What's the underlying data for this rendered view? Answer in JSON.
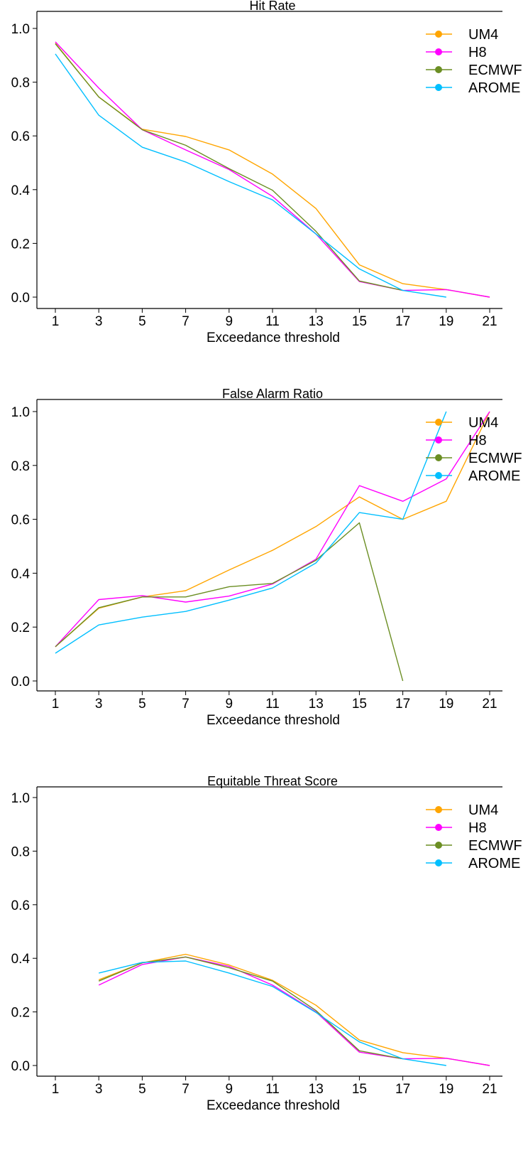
{
  "chart_data": [
    {
      "type": "line",
      "title": "Hit Rate",
      "xlabel": "Exceedance threshold",
      "ylabel": "",
      "x_ticks": [
        1,
        3,
        5,
        7,
        9,
        11,
        13,
        15,
        17,
        19,
        21
      ],
      "y_ticks": [
        "0.0",
        "0.2",
        "0.4",
        "0.6",
        "0.8",
        "1.0"
      ],
      "xlim": [
        0,
        21.5
      ],
      "ylim": [
        -0.05,
        1.05
      ],
      "grid": false,
      "legend_position": "top-right",
      "series": [
        {
          "name": "UM4",
          "color": "#ffa500",
          "x": [
            1,
            3,
            5,
            7,
            9,
            11,
            13,
            15,
            17,
            19,
            21
          ],
          "y": [
            0.945,
            0.745,
            0.625,
            0.598,
            0.548,
            0.458,
            0.33,
            0.12,
            0.05,
            0.028,
            0.0
          ]
        },
        {
          "name": "H8",
          "color": "#ff00ff",
          "x": [
            1,
            3,
            5,
            7,
            9,
            11,
            13,
            15,
            17,
            19,
            21
          ],
          "y": [
            0.95,
            0.778,
            0.623,
            0.548,
            0.475,
            0.375,
            0.235,
            0.058,
            0.025,
            0.028,
            0.0
          ]
        },
        {
          "name": "ECMWF",
          "color": "#6b8e23",
          "x": [
            1,
            3,
            5,
            7,
            9,
            11,
            13,
            15,
            17
          ],
          "y": [
            0.943,
            0.745,
            0.623,
            0.565,
            0.478,
            0.398,
            0.245,
            0.06,
            0.025
          ]
        },
        {
          "name": "AROME",
          "color": "#00bfff",
          "x": [
            1,
            3,
            5,
            7,
            9,
            11,
            13,
            15,
            17,
            19
          ],
          "y": [
            0.905,
            0.677,
            0.558,
            0.503,
            0.43,
            0.362,
            0.235,
            0.105,
            0.025,
            0.0
          ]
        }
      ]
    },
    {
      "type": "line",
      "title": "False Alarm Ratio",
      "xlabel": "Exceedance threshold",
      "ylabel": "",
      "x_ticks": [
        1,
        3,
        5,
        7,
        9,
        11,
        13,
        15,
        17,
        19,
        21
      ],
      "y_ticks": [
        "0.0",
        "0.2",
        "0.4",
        "0.6",
        "0.8",
        "1.0"
      ],
      "xlim": [
        0,
        21.5
      ],
      "ylim": [
        -0.05,
        1.05
      ],
      "grid": false,
      "legend_position": "top-right",
      "series": [
        {
          "name": "UM4",
          "color": "#ffa500",
          "x": [
            1,
            3,
            5,
            7,
            9,
            11,
            13,
            15,
            17,
            19,
            21
          ],
          "y": [
            0.127,
            0.27,
            0.312,
            0.335,
            0.412,
            0.485,
            0.573,
            0.683,
            0.6,
            0.667,
            1.0
          ]
        },
        {
          "name": "H8",
          "color": "#ff00ff",
          "x": [
            1,
            3,
            5,
            7,
            9,
            11,
            13,
            15,
            17,
            19,
            21
          ],
          "y": [
            0.127,
            0.302,
            0.317,
            0.293,
            0.315,
            0.36,
            0.452,
            0.725,
            0.667,
            0.75,
            1.0
          ]
        },
        {
          "name": "ECMWF",
          "color": "#6b8e23",
          "x": [
            1,
            3,
            5,
            7,
            9,
            11,
            13,
            15,
            17
          ],
          "y": [
            0.127,
            0.272,
            0.312,
            0.312,
            0.35,
            0.362,
            0.448,
            0.587,
            0.0
          ]
        },
        {
          "name": "AROME",
          "color": "#00bfff",
          "x": [
            1,
            3,
            5,
            7,
            9,
            11,
            13,
            15,
            17,
            19
          ],
          "y": [
            0.103,
            0.208,
            0.237,
            0.258,
            0.3,
            0.345,
            0.438,
            0.625,
            0.6,
            1.0
          ]
        }
      ]
    },
    {
      "type": "line",
      "title": "Equitable Threat Score",
      "xlabel": "Exceedance threshold",
      "ylabel": "",
      "x_ticks": [
        1,
        3,
        5,
        7,
        9,
        11,
        13,
        15,
        17,
        19,
        21
      ],
      "y_ticks": [
        "0.0",
        "0.2",
        "0.4",
        "0.6",
        "0.8",
        "1.0"
      ],
      "xlim": [
        0,
        21.5
      ],
      "ylim": [
        -0.05,
        1.05
      ],
      "grid": false,
      "legend_position": "top-right",
      "series": [
        {
          "name": "UM4",
          "color": "#ffa500",
          "x": [
            3,
            5,
            7,
            9,
            11,
            13,
            15,
            17,
            19,
            21
          ],
          "y": [
            0.32,
            0.383,
            0.415,
            0.375,
            0.318,
            0.225,
            0.095,
            0.048,
            0.027,
            0.0
          ]
        },
        {
          "name": "H8",
          "color": "#ff00ff",
          "x": [
            3,
            5,
            7,
            9,
            11,
            13,
            15,
            17,
            19,
            21
          ],
          "y": [
            0.3,
            0.377,
            0.405,
            0.37,
            0.3,
            0.2,
            0.05,
            0.025,
            0.027,
            0.0
          ]
        },
        {
          "name": "ECMWF",
          "color": "#6b8e23",
          "x": [
            3,
            5,
            7,
            9,
            11,
            13,
            15,
            17
          ],
          "y": [
            0.315,
            0.383,
            0.405,
            0.365,
            0.315,
            0.205,
            0.055,
            0.025
          ]
        },
        {
          "name": "AROME",
          "color": "#00bfff",
          "x": [
            3,
            5,
            7,
            9,
            11,
            13,
            15,
            17,
            19
          ],
          "y": [
            0.345,
            0.385,
            0.39,
            0.345,
            0.295,
            0.198,
            0.088,
            0.025,
            0.0
          ]
        }
      ]
    }
  ]
}
